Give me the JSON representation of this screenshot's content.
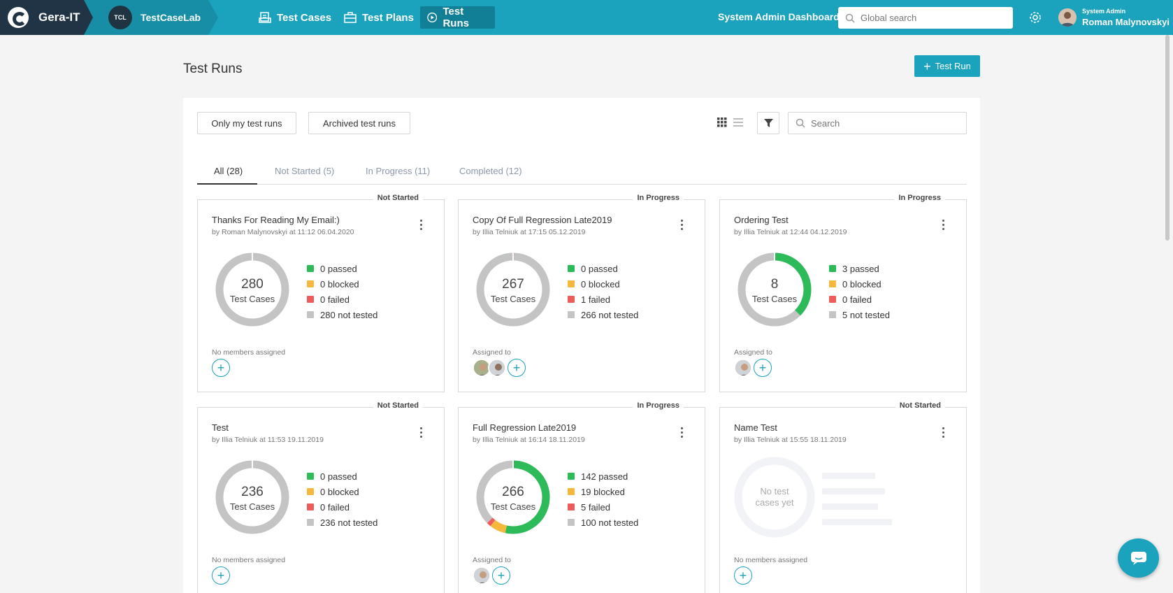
{
  "topbar": {
    "brand": "Gera-IT",
    "project_badge": "TCL",
    "project_name": "TestCaseLab",
    "nav": [
      {
        "label": "Test Cases"
      },
      {
        "label": "Test Plans"
      },
      {
        "label": "Test Runs"
      }
    ],
    "sysadmin_link": "System Admin Dashboard",
    "search_placeholder": "Global search",
    "user_role": "System Admin",
    "user_name": "Roman Malynovskyi"
  },
  "page": {
    "title": "Test Runs",
    "new_button": "Test Run",
    "filter_chips": [
      "Only my test runs",
      "Archived test runs"
    ],
    "search_placeholder": "Search",
    "tabs": [
      {
        "label": "All (28)"
      },
      {
        "label": "Not Started (5)"
      },
      {
        "label": "In Progress (11)"
      },
      {
        "label": "Completed (12)"
      }
    ]
  },
  "colors": {
    "accent": "#1ba2bd",
    "passed": "#2dbb5a",
    "blocked": "#f5b83d",
    "failed": "#ee5b5b",
    "not_tested": "#c4c4c4"
  },
  "cards": [
    {
      "status": "Not Started",
      "title": "Thanks For Reading My Email:)",
      "meta": "by Roman Malynovskyi at 11:12 06.04.2020",
      "total": 280,
      "total_label": "Test Cases",
      "passed": 0,
      "blocked": 0,
      "failed": 0,
      "not_tested": 280,
      "passed_label": "0 passed",
      "blocked_label": "0 blocked",
      "failed_label": "0 failed",
      "not_tested_label": "280 not tested",
      "assign_label": "No members assigned",
      "members": 0
    },
    {
      "status": "In Progress",
      "title": "Copy Of Full Regression Late2019",
      "meta": "by Illia Telniuk at 17:15 05.12.2019",
      "total": 267,
      "total_label": "Test Cases",
      "passed": 0,
      "blocked": 0,
      "failed": 1,
      "not_tested": 266,
      "passed_label": "0 passed",
      "blocked_label": "0 blocked",
      "failed_label": "1 failed",
      "not_tested_label": "266 not tested",
      "assign_label": "Assigned to",
      "members": 2
    },
    {
      "status": "In Progress",
      "title": "Ordering Test",
      "meta": "by Illia Telniuk at 12:44 04.12.2019",
      "total": 8,
      "total_label": "Test Cases",
      "passed": 3,
      "blocked": 0,
      "failed": 0,
      "not_tested": 5,
      "passed_label": "3 passed",
      "blocked_label": "0 blocked",
      "failed_label": "0 failed",
      "not_tested_label": "5 not tested",
      "assign_label": "Assigned to",
      "members": 1
    },
    {
      "status": "Not Started",
      "title": "Test",
      "meta": "by Illia Telniuk at 11:53 19.11.2019",
      "total": 236,
      "total_label": "Test Cases",
      "passed": 0,
      "blocked": 0,
      "failed": 0,
      "not_tested": 236,
      "passed_label": "0 passed",
      "blocked_label": "0 blocked",
      "failed_label": "0 failed",
      "not_tested_label": "236 not tested",
      "assign_label": "No members assigned",
      "members": 0
    },
    {
      "status": "In Progress",
      "title": "Full Regression Late2019",
      "meta": "by Illia Telniuk at 16:14 18.11.2019",
      "total": 266,
      "total_label": "Test Cases",
      "passed": 142,
      "blocked": 19,
      "failed": 5,
      "not_tested": 100,
      "passed_label": "142 passed",
      "blocked_label": "19 blocked",
      "failed_label": "5 failed",
      "not_tested_label": "100 not tested",
      "assign_label": "Assigned to",
      "members": 1
    },
    {
      "status": "Not Started",
      "title": "Name Test",
      "meta": "by Illia Telniuk at 15:55 18.11.2019",
      "empty_label": "No test cases yet",
      "assign_label": "No members assigned",
      "members": 0
    }
  ]
}
